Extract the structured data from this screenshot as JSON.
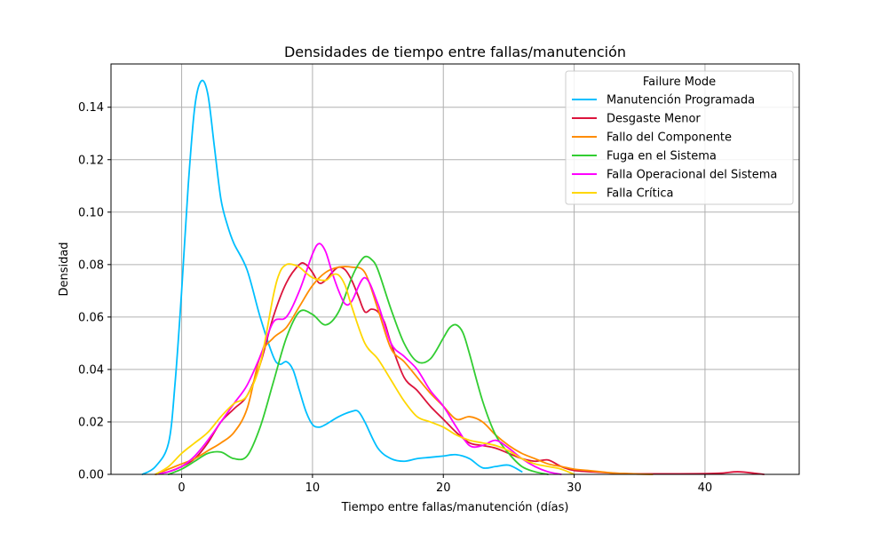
{
  "chart_data": {
    "type": "line",
    "title": "Densidades de tiempo entre fallas/manutención",
    "xlabel": "Tiempo entre fallas/manutención (días)",
    "ylabel": "Densidad",
    "xlim": [
      -5.4,
      47.2
    ],
    "ylim": [
      0,
      0.1565
    ],
    "xticks": [
      0,
      10,
      20,
      30,
      40
    ],
    "yticks": [
      0.0,
      0.02,
      0.04,
      0.06,
      0.08,
      0.1,
      0.12,
      0.14
    ],
    "ytick_labels": [
      "0.00",
      "0.02",
      "0.04",
      "0.06",
      "0.08",
      "0.10",
      "0.12",
      "0.14"
    ],
    "grid": true,
    "legend": {
      "title": "Failure Mode",
      "position": "top-right"
    },
    "series": [
      {
        "name": "Manutención Programada",
        "color": "#00bfff",
        "x": [
          -3,
          -2,
          -1,
          -0.5,
          0,
          0.5,
          1,
          1.5,
          2,
          2.5,
          3,
          3.5,
          4,
          5,
          6,
          7,
          7.5,
          8,
          8.5,
          9,
          9.5,
          10,
          10.5,
          11,
          12,
          13,
          13.5,
          14,
          15,
          16,
          17,
          18,
          19,
          20,
          21,
          22,
          23,
          24,
          25,
          26
        ],
        "y": [
          0.0,
          0.003,
          0.012,
          0.035,
          0.07,
          0.11,
          0.14,
          0.15,
          0.145,
          0.125,
          0.105,
          0.095,
          0.088,
          0.078,
          0.06,
          0.045,
          0.042,
          0.043,
          0.04,
          0.032,
          0.024,
          0.019,
          0.018,
          0.019,
          0.022,
          0.024,
          0.024,
          0.02,
          0.01,
          0.006,
          0.005,
          0.006,
          0.0065,
          0.007,
          0.0075,
          0.006,
          0.0025,
          0.003,
          0.0035,
          0.001
        ]
      },
      {
        "name": "Desgaste Menor",
        "color": "#dc143c",
        "x": [
          -2,
          -1,
          0,
          1,
          2,
          3,
          4,
          5,
          6,
          7,
          8,
          9,
          9.5,
          10,
          10.5,
          11,
          11.5,
          12,
          12.5,
          13,
          13.5,
          14,
          14.5,
          15,
          15.5,
          16,
          17,
          18,
          19,
          20,
          21,
          22,
          23,
          24,
          25,
          26,
          27,
          28,
          29,
          30,
          32,
          34,
          38,
          41,
          42.5,
          44,
          44.5
        ],
        "y": [
          0.0,
          0.001,
          0.003,
          0.006,
          0.012,
          0.02,
          0.025,
          0.03,
          0.042,
          0.06,
          0.073,
          0.08,
          0.08,
          0.077,
          0.073,
          0.074,
          0.077,
          0.079,
          0.078,
          0.074,
          0.068,
          0.062,
          0.063,
          0.062,
          0.058,
          0.05,
          0.037,
          0.032,
          0.026,
          0.021,
          0.016,
          0.012,
          0.011,
          0.01,
          0.008,
          0.006,
          0.005,
          0.0055,
          0.003,
          0.0015,
          0.0008,
          0.0003,
          0.0002,
          0.0004,
          0.001,
          0.0003,
          0.0
        ]
      },
      {
        "name": "Fallo del Componente",
        "color": "#ff8c00",
        "x": [
          -2,
          -1,
          0,
          1,
          2,
          3,
          4,
          5,
          6,
          7,
          8,
          9,
          10,
          11,
          12,
          13,
          14,
          15,
          16,
          17,
          18,
          19,
          20,
          21,
          22,
          23,
          24,
          25,
          26,
          27,
          28,
          29,
          30,
          31,
          32,
          33,
          34,
          35,
          36
        ],
        "y": [
          0.0,
          0.002,
          0.004,
          0.006,
          0.009,
          0.012,
          0.016,
          0.025,
          0.045,
          0.052,
          0.056,
          0.064,
          0.072,
          0.077,
          0.079,
          0.079,
          0.077,
          0.063,
          0.048,
          0.043,
          0.037,
          0.031,
          0.026,
          0.021,
          0.022,
          0.02,
          0.015,
          0.011,
          0.008,
          0.006,
          0.004,
          0.003,
          0.002,
          0.0015,
          0.001,
          0.0005,
          0.0003,
          0.0001,
          0.0
        ]
      },
      {
        "name": "Fuga en el Sistema",
        "color": "#32cd32",
        "x": [
          -1,
          0,
          1,
          2,
          3,
          4,
          5,
          6,
          7,
          8,
          9,
          10,
          11,
          12,
          13,
          13.5,
          14,
          14.5,
          15,
          16,
          17,
          18,
          19,
          20,
          20.5,
          21,
          21.5,
          22,
          23,
          24,
          25,
          26,
          27,
          28
        ],
        "y": [
          0.0,
          0.002,
          0.005,
          0.008,
          0.0085,
          0.006,
          0.007,
          0.018,
          0.035,
          0.052,
          0.062,
          0.061,
          0.057,
          0.062,
          0.075,
          0.08,
          0.083,
          0.082,
          0.078,
          0.063,
          0.05,
          0.043,
          0.044,
          0.052,
          0.056,
          0.057,
          0.054,
          0.046,
          0.028,
          0.015,
          0.008,
          0.003,
          0.001,
          0.0
        ]
      },
      {
        "name": "Falla Operacional del Sistema",
        "color": "#ff00ff",
        "x": [
          -2,
          -1,
          0,
          1,
          2,
          3,
          4,
          5,
          6,
          7,
          8,
          9,
          10,
          10.5,
          11,
          11.5,
          12,
          12.5,
          13,
          14,
          15,
          16,
          17,
          18,
          19,
          20,
          21,
          22,
          23,
          24,
          25,
          26,
          27,
          28,
          29
        ],
        "y": [
          0.0,
          0.001,
          0.003,
          0.007,
          0.013,
          0.02,
          0.027,
          0.034,
          0.045,
          0.058,
          0.06,
          0.07,
          0.084,
          0.088,
          0.085,
          0.077,
          0.07,
          0.065,
          0.066,
          0.075,
          0.065,
          0.05,
          0.045,
          0.04,
          0.032,
          0.026,
          0.018,
          0.011,
          0.011,
          0.013,
          0.01,
          0.006,
          0.003,
          0.001,
          0.0
        ]
      },
      {
        "name": "Falla Crítica",
        "color": "#ffd700",
        "x": [
          -2,
          -1,
          0,
          1,
          2,
          3,
          4,
          5,
          6,
          7,
          7.5,
          8,
          8.5,
          9,
          10,
          11,
          11.5,
          12,
          12.5,
          13,
          14,
          15,
          16,
          17,
          18,
          19,
          20,
          21,
          22,
          23,
          24,
          25,
          26,
          27,
          28,
          29,
          30
        ],
        "y": [
          0.0,
          0.003,
          0.008,
          0.012,
          0.016,
          0.022,
          0.027,
          0.03,
          0.042,
          0.068,
          0.077,
          0.08,
          0.08,
          0.079,
          0.075,
          0.074,
          0.076,
          0.076,
          0.072,
          0.064,
          0.05,
          0.044,
          0.036,
          0.028,
          0.022,
          0.02,
          0.018,
          0.015,
          0.013,
          0.012,
          0.011,
          0.009,
          0.006,
          0.004,
          0.003,
          0.002,
          0.0
        ]
      }
    ]
  }
}
